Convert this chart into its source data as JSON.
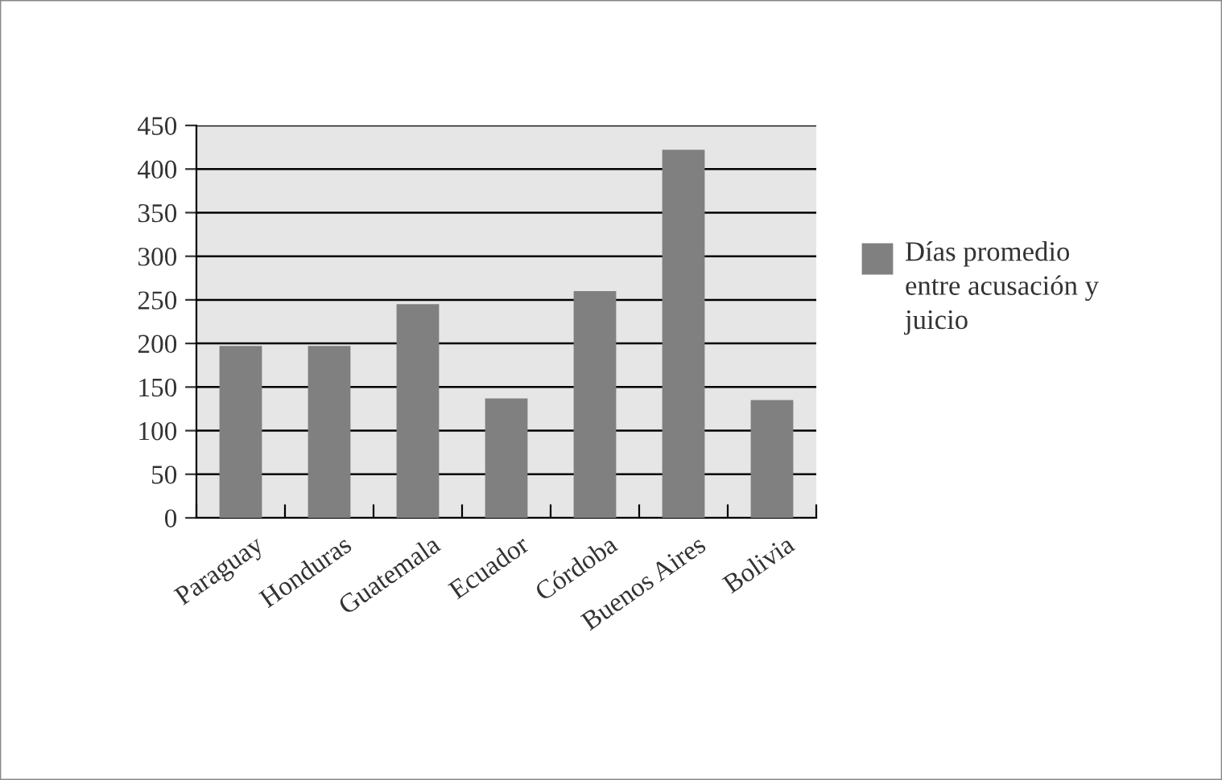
{
  "chart_data": {
    "type": "bar",
    "categories": [
      "Paraguay",
      "Honduras",
      "Guatemala",
      "Ecuador",
      "Córdoba",
      "Buenos Aires",
      "Bolivia"
    ],
    "series": [
      {
        "name": "Días promedio entre acusación y juicio",
        "color": "#808080",
        "values": [
          197,
          197,
          245,
          137,
          260,
          422,
          135
        ]
      }
    ],
    "ylim": [
      0,
      450
    ],
    "yticks": [
      0,
      50,
      100,
      150,
      200,
      250,
      300,
      350,
      400,
      450
    ],
    "grid": "y",
    "legend": "right"
  }
}
